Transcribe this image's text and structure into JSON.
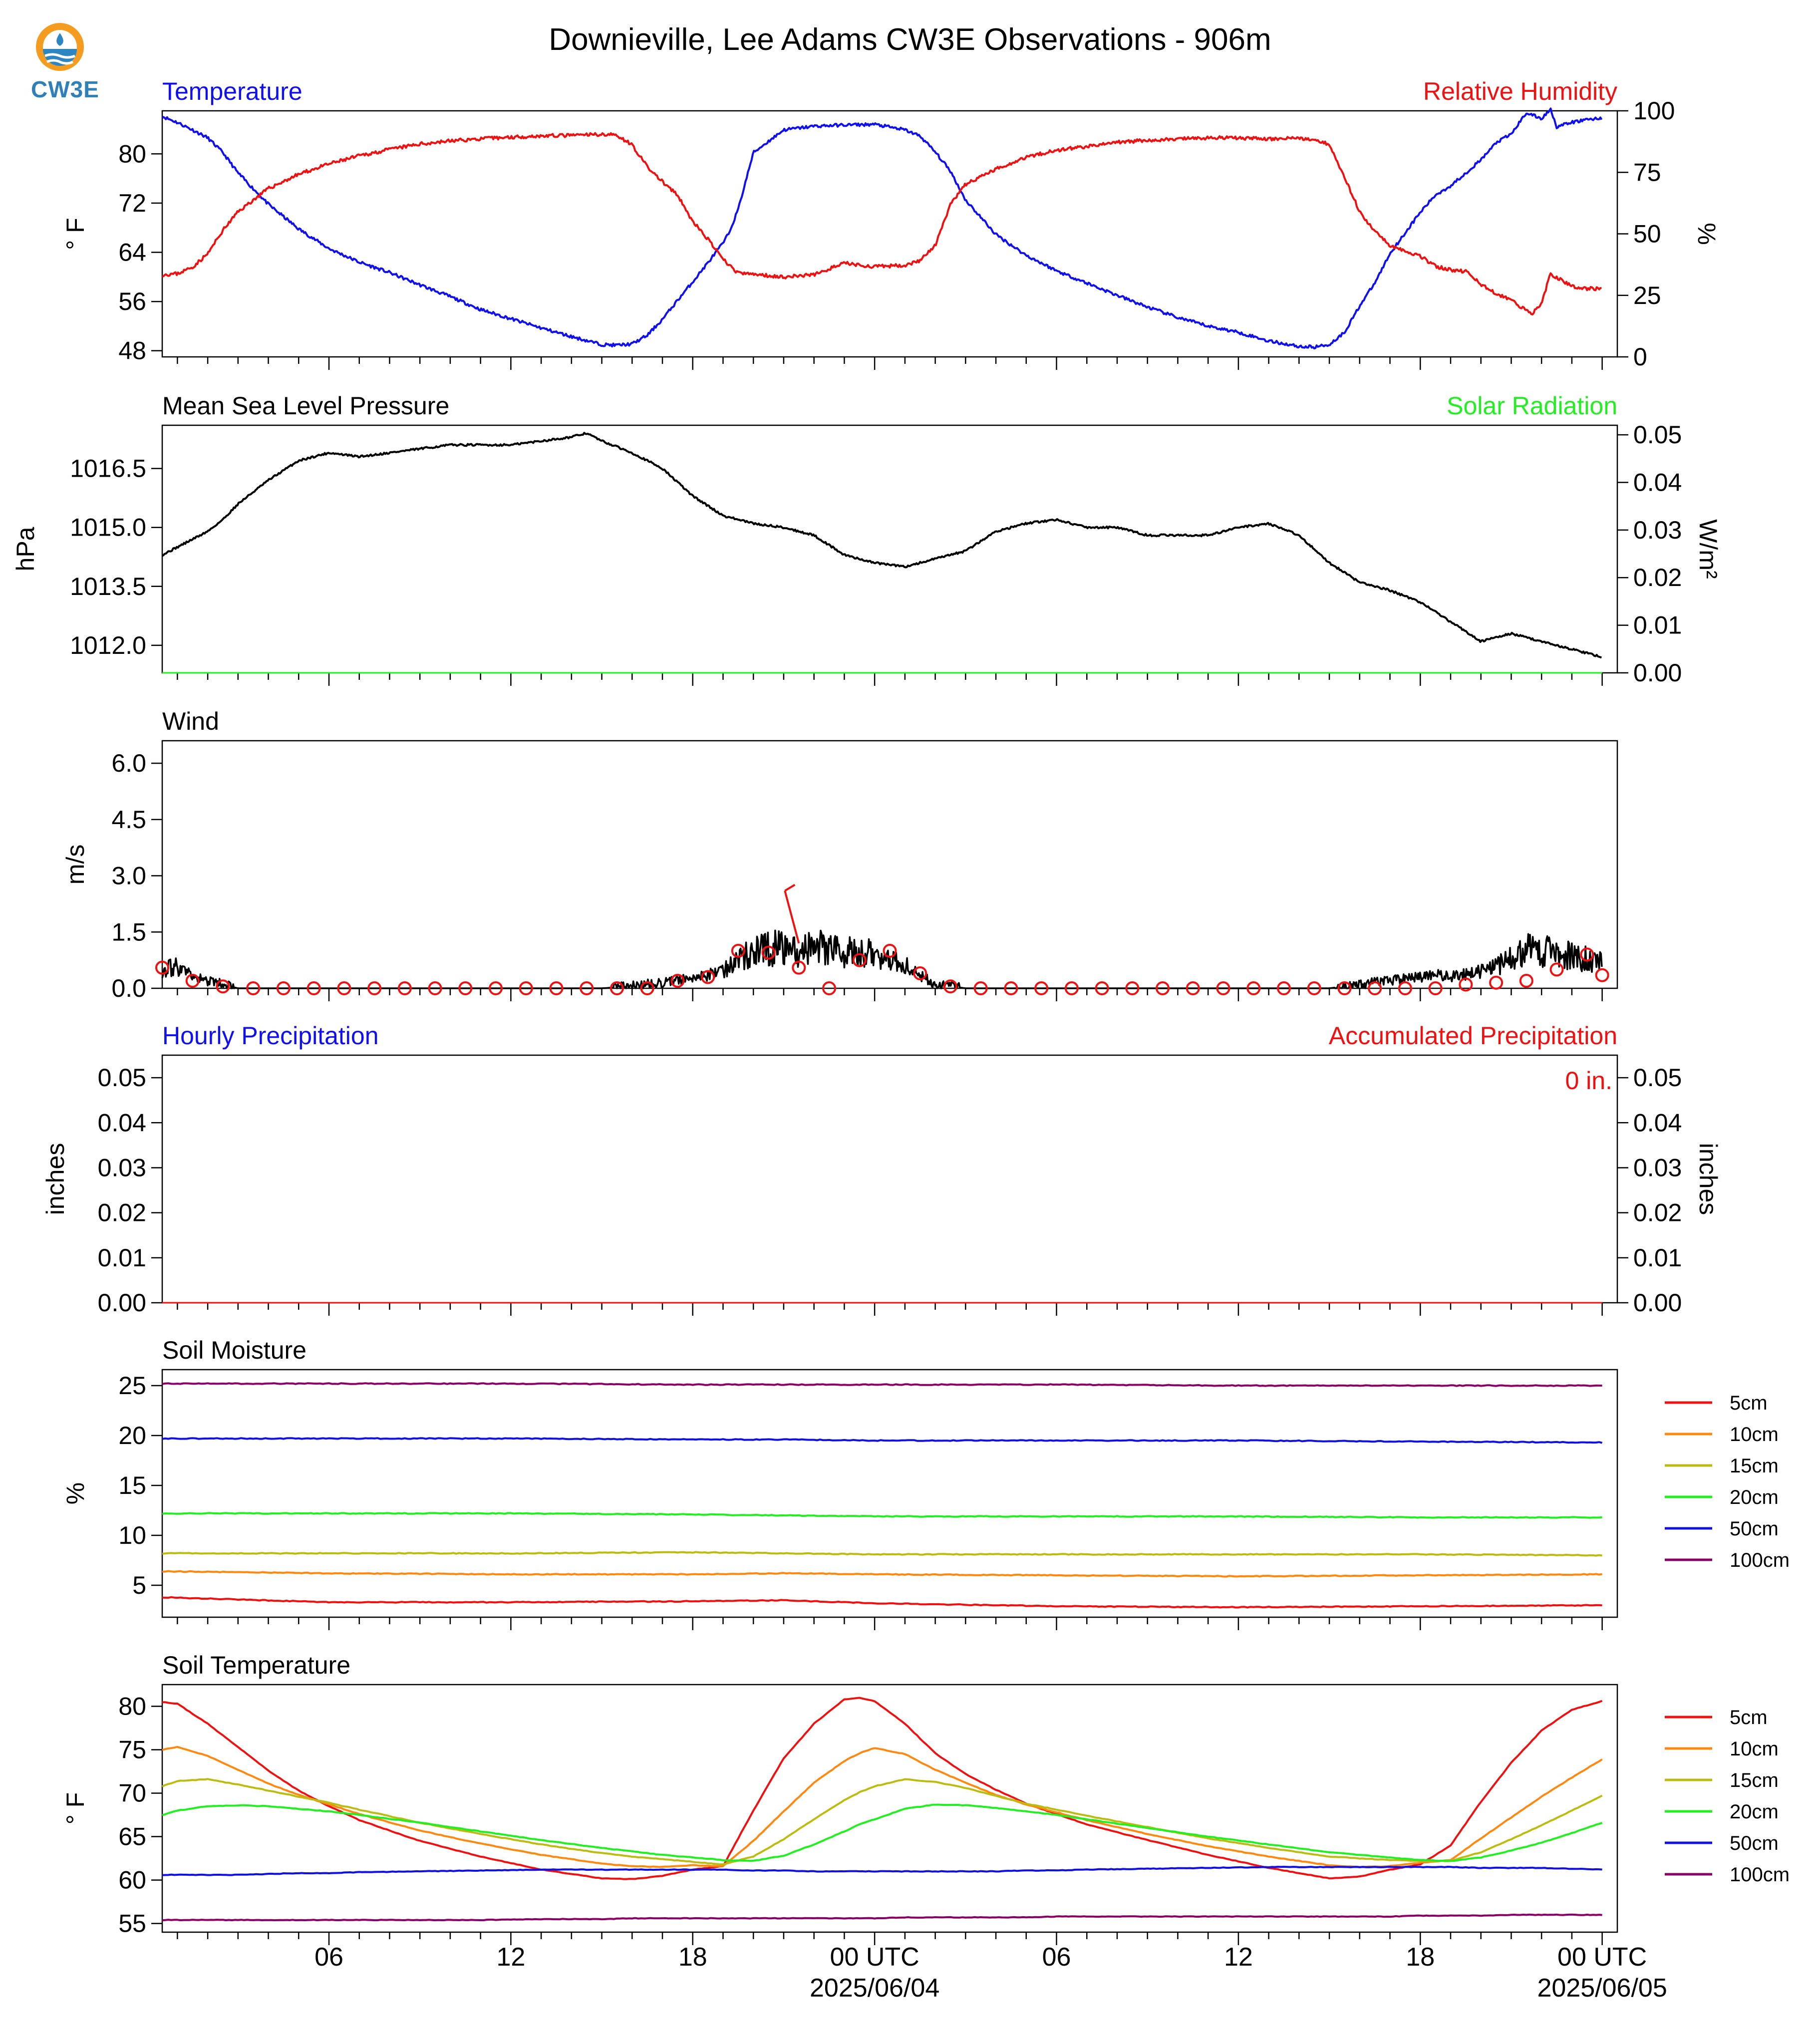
{
  "title": "Downieville, Lee Adams CW3E Observations - 906m",
  "logo": {
    "text": "CW3E",
    "icon": "cw3e-logo-icon"
  },
  "colors": {
    "temperature": "#1010ee",
    "humidity": "#ee1111",
    "solar": "#22ee22",
    "pressure": "#000000",
    "wind": "#000000",
    "wind_marker": "#ee1111",
    "precip_hourly": "#1010ee",
    "precip_accum": "#ee1111",
    "soil": {
      "5cm": "#ee1111",
      "10cm": "#ff8811",
      "15cm": "#bbbb11",
      "20cm": "#22ee22",
      "50cm": "#1111dd",
      "100cm": "#880066"
    }
  },
  "time_axis": {
    "hours_range": [
      -0.5,
      47.5
    ],
    "ticks": [
      {
        "h": 5,
        "label": "06"
      },
      {
        "h": 11,
        "label": "12"
      },
      {
        "h": 17,
        "label": "18"
      },
      {
        "h": 23,
        "label": "00 UTC",
        "date": "2025/06/04"
      },
      {
        "h": 29,
        "label": "06"
      },
      {
        "h": 35,
        "label": "12"
      },
      {
        "h": 41,
        "label": "18"
      },
      {
        "h": 47,
        "label": "00 UTC",
        "date": "2025/06/05"
      }
    ]
  },
  "panels": {
    "temp": {
      "left_title": "Temperature",
      "right_title": "Relative Humidity",
      "ylabel_left": "° F",
      "ylabel_right": "%",
      "ylim_left": [
        47,
        87
      ],
      "ylim_right": [
        0,
        100
      ],
      "yticks_left": [
        "48",
        "56",
        "64",
        "72",
        "80"
      ],
      "yticks_right": [
        "0",
        "25",
        "50",
        "75",
        "100"
      ]
    },
    "pres": {
      "left_title": "Mean Sea Level Pressure",
      "right_title": "Solar Radiation",
      "ylabel_left": "hPa",
      "ylabel_right": "W/m²",
      "ylim_left": [
        1011.3,
        1017.6
      ],
      "ylim_right": [
        0,
        0.052
      ],
      "yticks_left": [
        "1012.0",
        "1013.5",
        "1015.0",
        "1016.5"
      ],
      "yticks_right": [
        "0.00",
        "0.01",
        "0.02",
        "0.03",
        "0.04",
        "0.05"
      ]
    },
    "wind": {
      "left_title": "Wind",
      "ylabel_left": "m/s",
      "ylim_left": [
        0,
        6.6
      ],
      "yticks_left": [
        "0.0",
        "1.5",
        "3.0",
        "4.5",
        "6.0"
      ]
    },
    "precip": {
      "left_title": "Hourly Precipitation",
      "right_title": "Accumulated Precipitation",
      "ylabel_left": "inches",
      "ylabel_right": "inches",
      "ylim_left": [
        0,
        0.055
      ],
      "ylim_right": [
        0,
        0.055
      ],
      "yticks_left": [
        "0.00",
        "0.01",
        "0.02",
        "0.03",
        "0.04",
        "0.05"
      ],
      "yticks_right": [
        "0.00",
        "0.01",
        "0.02",
        "0.03",
        "0.04",
        "0.05"
      ],
      "accum_label": "0 in."
    },
    "soilm": {
      "left_title": "Soil Moisture",
      "ylabel_left": "%",
      "ylim_left": [
        1.8,
        26.6
      ],
      "yticks_left": [
        "5",
        "10",
        "15",
        "20",
        "25"
      ],
      "legend": [
        "5cm",
        "10cm",
        "15cm",
        "20cm",
        "50cm",
        "100cm"
      ]
    },
    "soilt": {
      "left_title": "Soil Temperature",
      "ylabel_left": "° F",
      "ylim_left": [
        54,
        82.5
      ],
      "yticks_left": [
        "55",
        "60",
        "65",
        "70",
        "75",
        "80"
      ],
      "legend": [
        "5cm",
        "10cm",
        "15cm",
        "20cm",
        "50cm",
        "100cm"
      ]
    }
  },
  "chart_data": [
    {
      "type": "line",
      "title": "Temperature",
      "xlabel": "",
      "ylabel": "° F",
      "x_unit": "hours from 2025/06/03 01 UTC",
      "x": [
        -0.5,
        0,
        0.5,
        1,
        1.5,
        2,
        3,
        4,
        5,
        6,
        7,
        8,
        9,
        10,
        11,
        12,
        13,
        14,
        14.5,
        15,
        15.5,
        16,
        16.5,
        17,
        17.5,
        18,
        18.2,
        18.5,
        19,
        20,
        21,
        22,
        23,
        24,
        24.5,
        25,
        25.5,
        26,
        27,
        28,
        29,
        30,
        31,
        32,
        33,
        34,
        35,
        36,
        37,
        37.5,
        38,
        38.5,
        39,
        39.5,
        40,
        41,
        41.5,
        42,
        43,
        43.5,
        44,
        44.5,
        45,
        45.3,
        45.5,
        46,
        46.5,
        47
      ],
      "values": [
        86.1,
        85.1,
        83.9,
        82.6,
        80.2,
        76.9,
        71.8,
        67.8,
        64.6,
        62.4,
        60.7,
        58.7,
        56.8,
        54.7,
        53.2,
        51.7,
        50.3,
        49.0,
        48.9,
        49.1,
        50.5,
        53.1,
        56.2,
        59.2,
        62.3,
        65.5,
        67.2,
        71.0,
        80.2,
        83.9,
        84.5,
        84.7,
        84.8,
        83.9,
        82.9,
        80.3,
        77.2,
        72.5,
        66.9,
        63.5,
        61.0,
        59.0,
        57.0,
        55.1,
        53.4,
        52.0,
        51.0,
        49.6,
        48.7,
        48.6,
        49.0,
        51.0,
        55.3,
        59.0,
        63.8,
        70.5,
        73.3,
        74.8,
        79.0,
        81.8,
        83.2,
        86.7,
        85.7,
        87.3,
        84.4,
        85.1,
        85.6,
        85.8
      ]
    },
    {
      "type": "line",
      "title": "Relative Humidity",
      "ylabel": "%",
      "x": [
        -0.5,
        0,
        0.5,
        1,
        1.5,
        2,
        3,
        4,
        5,
        6,
        7,
        8,
        9,
        10,
        11,
        12,
        13,
        14,
        14.5,
        15,
        15.5,
        16,
        16.5,
        17,
        17.5,
        18,
        18.5,
        19,
        20,
        21,
        22,
        23,
        24,
        24.5,
        25,
        25.5,
        26,
        27,
        28,
        29,
        30,
        31,
        32,
        33,
        34,
        35,
        36,
        37,
        37.5,
        38,
        38.5,
        39,
        39.5,
        40,
        41,
        41.5,
        42,
        42.5,
        43,
        43.5,
        44,
        44.5,
        44.7,
        45,
        45.3,
        45.6,
        46,
        46.5,
        47
      ],
      "values": [
        33.4,
        33.8,
        36.5,
        41.9,
        51.4,
        59.0,
        68.4,
        74.2,
        78.4,
        81.7,
        84.3,
        86.5,
        87.8,
        88.6,
        89.3,
        89.8,
        90.0,
        90.5,
        90.1,
        86.2,
        77.2,
        71.2,
        65.6,
        55.0,
        47.8,
        39.6,
        34.0,
        33.6,
        32.5,
        33.4,
        38.1,
        36.6,
        37.3,
        39.2,
        45.2,
        61.8,
        70.1,
        76.3,
        81.2,
        84.0,
        85.5,
        87.2,
        88.0,
        88.5,
        89.0,
        89.0,
        88.5,
        89.0,
        88.2,
        86.5,
        73.1,
        58.9,
        51.0,
        45.4,
        40.9,
        36.8,
        35.3,
        34.8,
        29.5,
        25.8,
        22.9,
        18.8,
        17.6,
        22.0,
        33.8,
        31.5,
        28.8,
        27.7,
        27.8
      ]
    },
    {
      "type": "line",
      "title": "Mean Sea Level Pressure",
      "ylabel": "hPa",
      "x": [
        -0.5,
        0,
        0.5,
        1,
        1.5,
        2,
        3,
        4,
        5,
        6,
        7,
        8,
        9,
        10,
        11,
        12,
        13,
        13.5,
        14,
        15,
        16,
        17,
        18,
        19,
        20,
        21,
        22,
        23,
        24,
        25,
        26,
        27,
        28,
        29,
        30,
        31,
        32,
        33,
        34,
        35,
        36,
        37,
        38,
        39,
        40,
        41,
        42,
        43,
        44,
        45,
        46,
        47
      ],
      "values": [
        1014.3,
        1014.5,
        1014.7,
        1014.9,
        1015.2,
        1015.6,
        1016.2,
        1016.7,
        1016.9,
        1016.8,
        1016.9,
        1017.0,
        1017.1,
        1017.1,
        1017.1,
        1017.2,
        1017.3,
        1017.4,
        1017.2,
        1016.9,
        1016.5,
        1015.8,
        1015.3,
        1015.1,
        1015.0,
        1014.8,
        1014.3,
        1014.1,
        1014.0,
        1014.2,
        1014.4,
        1014.9,
        1015.1,
        1015.2,
        1015.0,
        1015.0,
        1014.8,
        1014.8,
        1014.8,
        1015.0,
        1015.1,
        1014.8,
        1014.1,
        1013.6,
        1013.4,
        1013.1,
        1012.6,
        1012.1,
        1012.3,
        1012.1,
        1011.9,
        1011.7
      ]
    },
    {
      "type": "line",
      "title": "Solar Radiation",
      "ylabel": "W/m²",
      "x": [
        -0.5,
        47
      ],
      "values": [
        0,
        0
      ]
    },
    {
      "type": "line",
      "title": "Wind",
      "ylabel": "m/s",
      "x": [
        -0.5,
        0,
        0.5,
        1,
        2,
        14,
        15,
        16,
        16.5,
        17,
        17.5,
        18,
        18.5,
        19,
        19.5,
        20,
        20.5,
        21,
        21.5,
        22,
        22.5,
        23,
        23.5,
        24,
        24.5,
        25,
        25.5,
        26,
        32,
        38,
        39,
        40,
        41,
        41.5,
        42,
        43,
        43.5,
        44,
        44.5,
        45,
        45.5,
        46,
        46.5,
        47
      ],
      "values": [
        0.5,
        0.6,
        0.3,
        0.2,
        0,
        0,
        0.05,
        0.15,
        0.2,
        0.3,
        0.35,
        0.5,
        0.75,
        0.95,
        1.05,
        1.1,
        1.0,
        1.05,
        1.1,
        1.0,
        0.95,
        0.9,
        0.85,
        0.6,
        0.35,
        0.1,
        0.05,
        0,
        0,
        0,
        0.1,
        0.2,
        0.3,
        0.35,
        0.3,
        0.45,
        0.55,
        0.8,
        1.1,
        1.0,
        0.9,
        0.85,
        0.8,
        0.65
      ],
      "marker_x": [
        -0.5,
        0.5,
        1.5,
        2.5,
        3.5,
        4.5,
        5.5,
        6.5,
        7.5,
        8.5,
        9.5,
        10.5,
        11.5,
        12.5,
        13.5,
        14.5,
        15.5,
        16.5,
        17.5,
        18.5,
        19.5,
        20.5,
        21.5,
        22.5,
        23.5,
        24.5,
        25.5,
        26.5,
        27.5,
        28.5,
        29.5,
        30.5,
        31.5,
        32.5,
        33.5,
        34.5,
        35.5,
        36.5,
        37.5,
        38.5,
        39.5,
        40.5,
        41.5,
        42.5,
        43.5,
        44.5,
        45.5,
        46.5,
        47
      ],
      "marker_values": [
        0.55,
        0.2,
        0.05,
        0,
        0,
        0,
        0,
        0,
        0,
        0,
        0,
        0,
        0,
        0,
        0,
        0,
        0,
        0.2,
        0.3,
        1.0,
        0.95,
        0.55,
        0,
        0.75,
        1.0,
        0.4,
        0.05,
        0,
        0,
        0,
        0,
        0,
        0,
        0,
        0,
        0,
        0,
        0,
        0,
        0,
        0,
        0,
        0,
        0.1,
        0.15,
        0.2,
        0.5,
        0.9,
        0.35,
        0.25
      ],
      "barb": {
        "x": 20.5,
        "value": 2.6
      }
    },
    {
      "type": "bar",
      "title": "Hourly Precipitation",
      "ylabel": "inches",
      "x": [
        -0.5,
        47
      ],
      "values": [
        0,
        0
      ]
    },
    {
      "type": "line",
      "title": "Accumulated Precipitation",
      "ylabel": "inches",
      "x": [
        -0.5,
        47
      ],
      "values": [
        0,
        0
      ]
    },
    {
      "type": "line",
      "title": "Soil Moisture",
      "ylabel": "%",
      "x": [
        -0.5,
        5,
        11,
        17,
        20,
        23,
        29,
        35,
        41,
        47
      ],
      "series": [
        {
          "name": "5cm",
          "values": [
            3.8,
            3.3,
            3.3,
            3.4,
            3.5,
            3.2,
            2.9,
            2.8,
            2.9,
            3.0
          ]
        },
        {
          "name": "10cm",
          "values": [
            6.4,
            6.2,
            6.1,
            6.1,
            6.2,
            6.1,
            6.0,
            5.9,
            6.0,
            6.1
          ]
        },
        {
          "name": "15cm",
          "values": [
            8.2,
            8.2,
            8.2,
            8.3,
            8.2,
            8.1,
            8.1,
            8.1,
            8.1,
            8.0
          ]
        },
        {
          "name": "20cm",
          "values": [
            12.2,
            12.2,
            12.2,
            12.1,
            12.0,
            11.9,
            11.9,
            11.9,
            11.8,
            11.8
          ]
        },
        {
          "name": "50cm",
          "values": [
            19.7,
            19.7,
            19.7,
            19.6,
            19.6,
            19.5,
            19.5,
            19.5,
            19.4,
            19.3
          ]
        },
        {
          "name": "100cm",
          "values": [
            25.2,
            25.2,
            25.2,
            25.1,
            25.1,
            25.1,
            25.1,
            25.0,
            25.0,
            25.0
          ]
        }
      ]
    },
    {
      "type": "line",
      "title": "Soil Temperature",
      "ylabel": "° F",
      "x": [
        -0.5,
        0,
        1,
        2,
        3,
        4,
        5,
        6,
        8,
        10,
        12,
        14,
        15,
        16,
        17,
        18,
        19,
        20,
        21,
        22,
        22.5,
        23,
        24,
        25,
        26,
        27,
        28,
        29,
        30,
        32,
        34,
        36,
        38,
        39,
        40,
        41,
        42,
        43,
        44,
        45,
        46,
        47
      ],
      "series": [
        {
          "name": "5cm",
          "values": [
            80.5,
            80.3,
            78.0,
            75.3,
            72.6,
            70.3,
            68.5,
            66.9,
            64.5,
            62.7,
            61.2,
            60.2,
            60.1,
            60.5,
            61.2,
            61.6,
            68.0,
            74.0,
            78.0,
            80.8,
            81.0,
            80.6,
            78.0,
            74.6,
            72.2,
            70.4,
            68.8,
            67.6,
            66.4,
            64.6,
            62.9,
            61.4,
            60.2,
            60.4,
            61.2,
            61.8,
            64.0,
            69.0,
            73.5,
            77.2,
            79.6,
            80.6
          ]
        },
        {
          "name": "10cm",
          "values": [
            75.0,
            75.3,
            74.3,
            72.7,
            71.1,
            69.8,
            68.7,
            67.6,
            65.7,
            64.2,
            62.9,
            61.9,
            61.6,
            61.5,
            61.7,
            61.6,
            64.5,
            67.9,
            71.2,
            73.7,
            74.6,
            75.2,
            74.5,
            72.7,
            71.2,
            69.8,
            68.7,
            67.8,
            66.9,
            65.3,
            63.9,
            62.7,
            61.7,
            61.5,
            61.6,
            62.0,
            62.3,
            64.8,
            67.2,
            69.6,
            71.8,
            73.9
          ]
        },
        {
          "name": "15cm",
          "values": [
            70.8,
            71.4,
            71.6,
            71.0,
            70.3,
            69.6,
            68.9,
            68.1,
            66.6,
            65.3,
            64.1,
            63.1,
            62.7,
            62.4,
            62.1,
            61.8,
            62.7,
            64.7,
            67.0,
            69.2,
            70.1,
            70.8,
            71.6,
            71.3,
            70.6,
            69.7,
            68.8,
            68.1,
            67.4,
            66.1,
            64.8,
            63.7,
            62.7,
            62.5,
            62.3,
            62.2,
            62.2,
            63.2,
            64.7,
            66.3,
            68.0,
            69.7
          ]
        },
        {
          "name": "20cm",
          "values": [
            67.5,
            68.0,
            68.5,
            68.6,
            68.5,
            68.2,
            67.9,
            67.5,
            66.6,
            65.6,
            64.6,
            63.7,
            63.3,
            62.9,
            62.6,
            62.3,
            62.2,
            62.8,
            64.1,
            65.6,
            66.4,
            67.0,
            68.2,
            68.7,
            68.6,
            68.3,
            67.9,
            67.5,
            67.0,
            66.0,
            65.0,
            64.1,
            63.2,
            62.9,
            62.6,
            62.3,
            62.2,
            62.6,
            63.4,
            64.3,
            65.4,
            66.6
          ]
        },
        {
          "name": "50cm",
          "values": [
            60.6,
            60.6,
            60.6,
            60.6,
            60.7,
            60.8,
            60.8,
            60.9,
            61.0,
            61.1,
            61.2,
            61.2,
            61.2,
            61.2,
            61.2,
            61.2,
            61.1,
            61.1,
            61.0,
            61.0,
            61.0,
            61.0,
            61.0,
            61.0,
            61.0,
            61.0,
            61.1,
            61.1,
            61.2,
            61.3,
            61.4,
            61.5,
            61.5,
            61.5,
            61.5,
            61.5,
            61.5,
            61.4,
            61.4,
            61.4,
            61.3,
            61.2
          ]
        },
        {
          "name": "100cm",
          "values": [
            55.4,
            55.4,
            55.4,
            55.4,
            55.4,
            55.4,
            55.4,
            55.4,
            55.4,
            55.4,
            55.5,
            55.5,
            55.6,
            55.6,
            55.6,
            55.6,
            55.6,
            55.6,
            55.6,
            55.6,
            55.6,
            55.6,
            55.7,
            55.7,
            55.7,
            55.7,
            55.7,
            55.8,
            55.8,
            55.8,
            55.8,
            55.8,
            55.8,
            55.8,
            55.8,
            55.9,
            55.9,
            55.9,
            56.0,
            56.0,
            56.0,
            56.0
          ]
        }
      ]
    }
  ]
}
